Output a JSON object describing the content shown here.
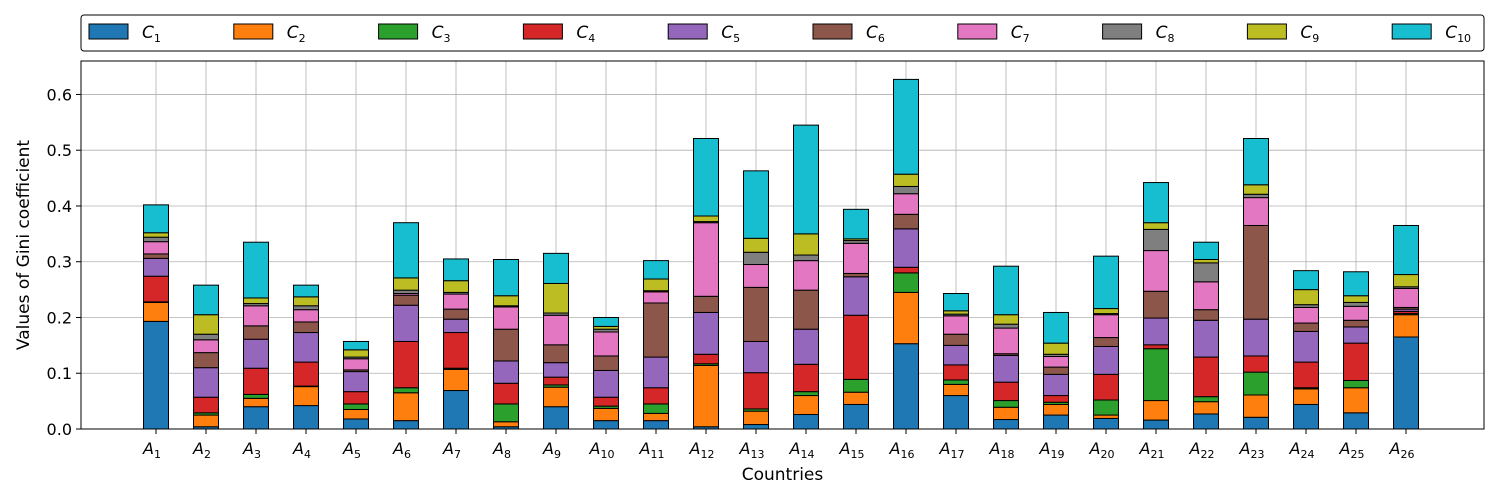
{
  "chart_data": {
    "type": "bar",
    "stacked": true,
    "xlabel": "Countries",
    "ylabel": "Values of Gini coefficient",
    "ylim": [
      0,
      0.66
    ],
    "yticks": [
      0.0,
      0.1,
      0.2,
      0.3,
      0.4,
      0.5,
      0.6
    ],
    "grid": true,
    "legend_position": "top",
    "categories": [
      {
        "base": "A",
        "sub": "1"
      },
      {
        "base": "A",
        "sub": "2"
      },
      {
        "base": "A",
        "sub": "3"
      },
      {
        "base": "A",
        "sub": "4"
      },
      {
        "base": "A",
        "sub": "5"
      },
      {
        "base": "A",
        "sub": "6"
      },
      {
        "base": "A",
        "sub": "7"
      },
      {
        "base": "A",
        "sub": "8"
      },
      {
        "base": "A",
        "sub": "9"
      },
      {
        "base": "A",
        "sub": "10"
      },
      {
        "base": "A",
        "sub": "11"
      },
      {
        "base": "A",
        "sub": "12"
      },
      {
        "base": "A",
        "sub": "13"
      },
      {
        "base": "A",
        "sub": "14"
      },
      {
        "base": "A",
        "sub": "15"
      },
      {
        "base": "A",
        "sub": "16"
      },
      {
        "base": "A",
        "sub": "17"
      },
      {
        "base": "A",
        "sub": "18"
      },
      {
        "base": "A",
        "sub": "19"
      },
      {
        "base": "A",
        "sub": "20"
      },
      {
        "base": "A",
        "sub": "21"
      },
      {
        "base": "A",
        "sub": "22"
      },
      {
        "base": "A",
        "sub": "23"
      },
      {
        "base": "A",
        "sub": "24"
      },
      {
        "base": "A",
        "sub": "25"
      },
      {
        "base": "A",
        "sub": "26"
      }
    ],
    "series": [
      {
        "name": {
          "base": "C",
          "sub": "1"
        },
        "color": "#1f77b4",
        "values": [
          0.193,
          0.004,
          0.04,
          0.042,
          0.018,
          0.015,
          0.069,
          0.004,
          0.04,
          0.015,
          0.015,
          0.004,
          0.008,
          0.026,
          0.044,
          0.153,
          0.06,
          0.017,
          0.025,
          0.019,
          0.016,
          0.027,
          0.021,
          0.044,
          0.029,
          0.165
        ]
      },
      {
        "name": {
          "base": "C",
          "sub": "2"
        },
        "color": "#ff7f0e",
        "values": [
          0.034,
          0.021,
          0.015,
          0.034,
          0.017,
          0.05,
          0.038,
          0.009,
          0.035,
          0.022,
          0.013,
          0.11,
          0.024,
          0.034,
          0.022,
          0.092,
          0.02,
          0.022,
          0.019,
          0.006,
          0.035,
          0.022,
          0.04,
          0.028,
          0.045,
          0.04
        ]
      },
      {
        "name": {
          "base": "C",
          "sub": "3"
        },
        "color": "#2ca02c",
        "values": [
          0.001,
          0.004,
          0.007,
          0.001,
          0.01,
          0.009,
          0.002,
          0.032,
          0.004,
          0.004,
          0.017,
          0.003,
          0.004,
          0.007,
          0.023,
          0.035,
          0.008,
          0.012,
          0.004,
          0.027,
          0.093,
          0.009,
          0.041,
          0.002,
          0.013,
          0.002
        ]
      },
      {
        "name": {
          "base": "C",
          "sub": "4"
        },
        "color": "#d62728",
        "values": [
          0.046,
          0.028,
          0.047,
          0.043,
          0.022,
          0.083,
          0.064,
          0.037,
          0.014,
          0.016,
          0.029,
          0.017,
          0.065,
          0.049,
          0.115,
          0.01,
          0.027,
          0.033,
          0.012,
          0.046,
          0.007,
          0.071,
          0.029,
          0.046,
          0.067,
          0.004
        ]
      },
      {
        "name": {
          "base": "C",
          "sub": "5"
        },
        "color": "#9467bd",
        "values": [
          0.032,
          0.053,
          0.052,
          0.053,
          0.036,
          0.065,
          0.024,
          0.04,
          0.026,
          0.048,
          0.055,
          0.075,
          0.056,
          0.063,
          0.069,
          0.069,
          0.035,
          0.048,
          0.038,
          0.05,
          0.048,
          0.066,
          0.066,
          0.055,
          0.029,
          0.004
        ]
      },
      {
        "name": {
          "base": "C",
          "sub": "6"
        },
        "color": "#8c564b",
        "values": [
          0.008,
          0.027,
          0.024,
          0.019,
          0.003,
          0.018,
          0.018,
          0.057,
          0.032,
          0.026,
          0.097,
          0.029,
          0.097,
          0.07,
          0.006,
          0.026,
          0.02,
          0.003,
          0.013,
          0.016,
          0.048,
          0.019,
          0.168,
          0.015,
          0.012,
          0.003
        ]
      },
      {
        "name": {
          "base": "C",
          "sub": "7"
        },
        "color": "#e377c2",
        "values": [
          0.022,
          0.023,
          0.036,
          0.022,
          0.02,
          0.003,
          0.027,
          0.04,
          0.053,
          0.043,
          0.02,
          0.132,
          0.041,
          0.053,
          0.054,
          0.037,
          0.033,
          0.046,
          0.019,
          0.041,
          0.073,
          0.05,
          0.05,
          0.028,
          0.025,
          0.034
        ]
      },
      {
        "name": {
          "base": "C",
          "sub": "8"
        },
        "color": "#7f7f7f",
        "values": [
          0.008,
          0.01,
          0.004,
          0.007,
          0.003,
          0.006,
          0.003,
          0.002,
          0.004,
          0.005,
          0.002,
          0.002,
          0.022,
          0.01,
          0.005,
          0.013,
          0.003,
          0.007,
          0.004,
          0.002,
          0.038,
          0.034,
          0.006,
          0.005,
          0.007,
          0.003
        ]
      },
      {
        "name": {
          "base": "C",
          "sub": "9"
        },
        "color": "#bcbd22",
        "values": [
          0.008,
          0.035,
          0.01,
          0.016,
          0.013,
          0.022,
          0.021,
          0.018,
          0.053,
          0.005,
          0.021,
          0.01,
          0.025,
          0.038,
          0.003,
          0.022,
          0.006,
          0.017,
          0.02,
          0.009,
          0.012,
          0.006,
          0.017,
          0.027,
          0.012,
          0.022
        ]
      },
      {
        "name": {
          "base": "C",
          "sub": "10"
        },
        "color": "#17becf",
        "values": [
          0.05,
          0.053,
          0.1,
          0.021,
          0.015,
          0.099,
          0.039,
          0.065,
          0.054,
          0.016,
          0.033,
          0.139,
          0.121,
          0.195,
          0.053,
          0.17,
          0.031,
          0.087,
          0.055,
          0.094,
          0.072,
          0.031,
          0.083,
          0.034,
          0.043,
          0.088
        ]
      }
    ]
  }
}
